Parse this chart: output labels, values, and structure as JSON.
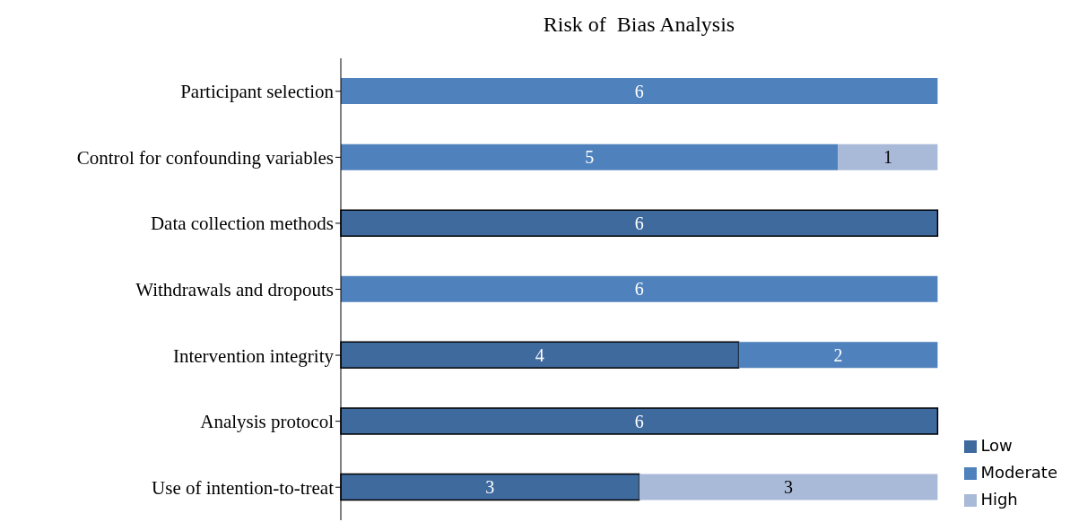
{
  "chart_data": {
    "type": "bar",
    "title": "Risk of  Bias Analysis",
    "orientation": "horizontal",
    "stacked": true,
    "data_labels": true,
    "legend": "bottom right",
    "categories": [
      "Participant selection",
      "Control for confounding variables",
      "Data collection methods",
      "Withdrawals and dropouts",
      "Intervention integrity",
      "Analysis protocol",
      "Use of intention-to-treat"
    ],
    "series": [
      {
        "name": "Low",
        "color": "#3f6a9e",
        "values": [
          null,
          null,
          6,
          null,
          4,
          6,
          3
        ]
      },
      {
        "name": "Moderate",
        "color": "#4f81bd",
        "values": [
          6,
          5,
          null,
          6,
          2,
          null,
          null
        ]
      },
      {
        "name": "High",
        "color": "#a9b9d8",
        "values": [
          null,
          1,
          null,
          null,
          null,
          null,
          3
        ]
      }
    ]
  }
}
